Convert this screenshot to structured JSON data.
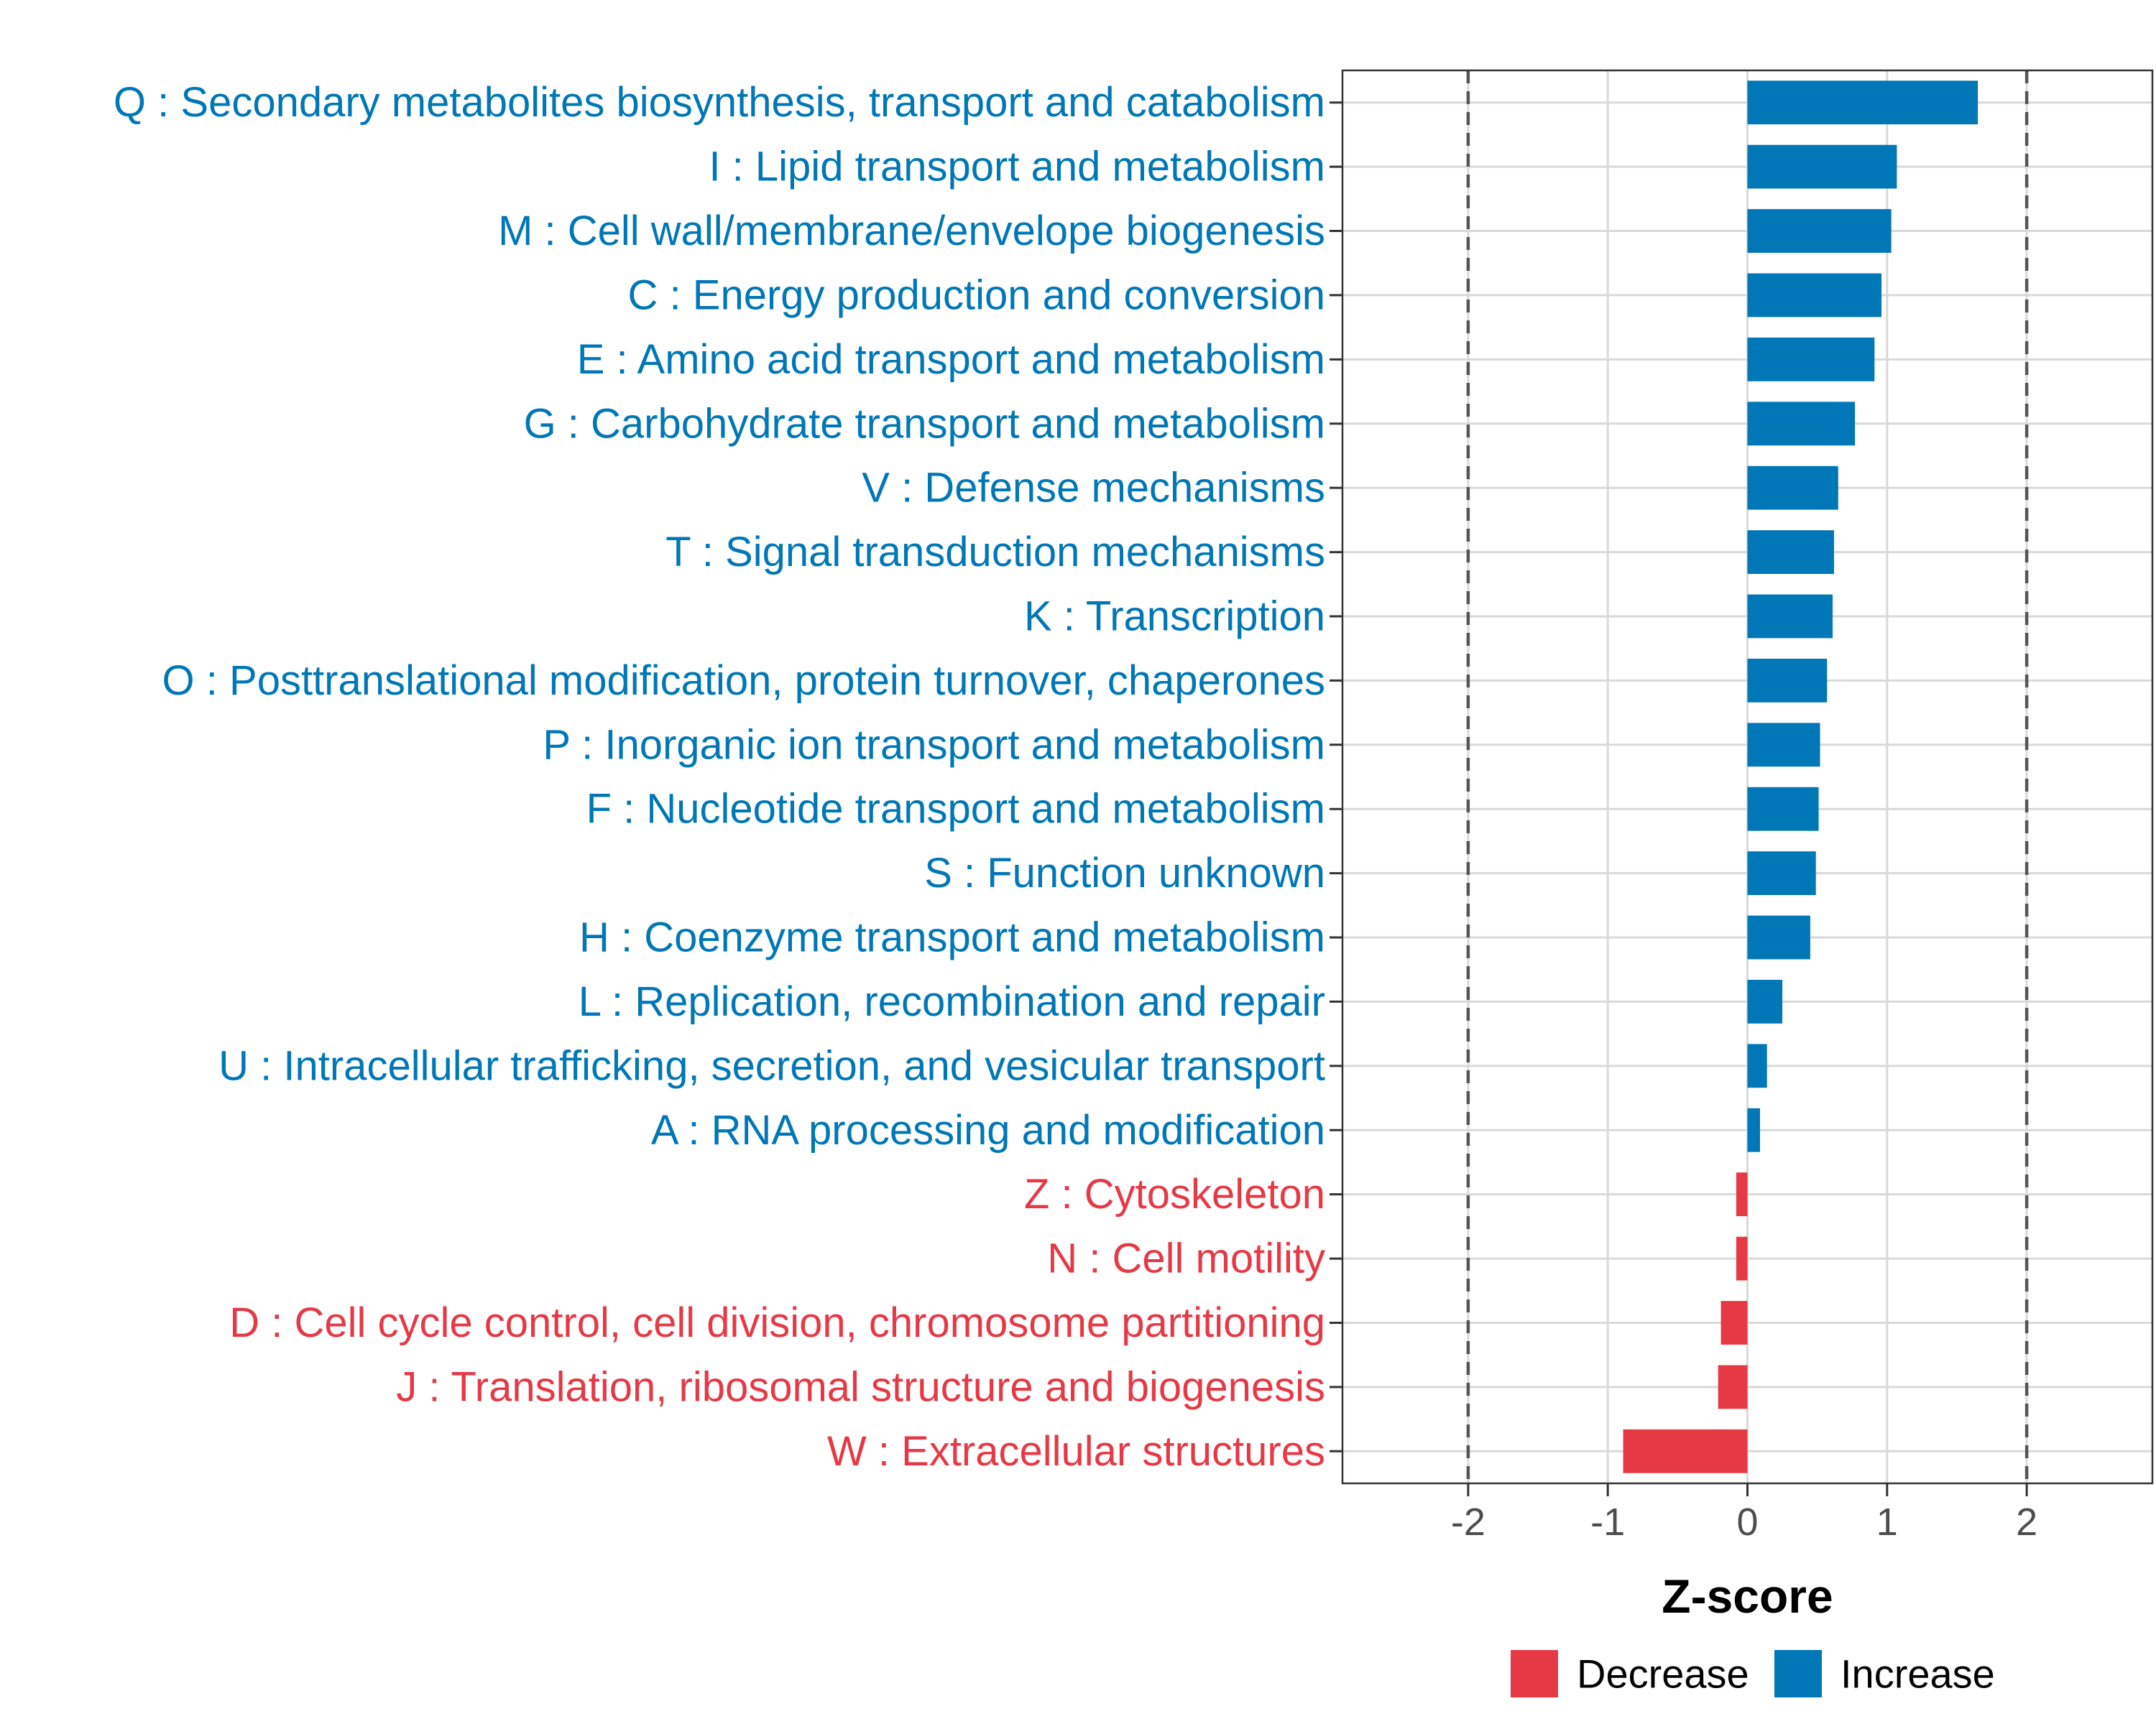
{
  "chart_data": {
    "type": "bar",
    "orientation": "horizontal",
    "xlabel": "Z-score",
    "xlim": [
      -2.9,
      2.9
    ],
    "xticks": [
      -2,
      -1,
      0,
      1,
      2
    ],
    "xtick_labels": [
      "-2",
      "-1",
      "0",
      "1",
      "2"
    ],
    "reference_lines": [
      -2,
      2
    ],
    "grid": true,
    "categories": [
      "Q : Secondary metabolites biosynthesis, transport and catabolism",
      "I : Lipid transport and metabolism",
      "M : Cell wall/membrane/envelope biogenesis",
      "C : Energy production and conversion",
      "E : Amino acid transport and metabolism",
      "G : Carbohydrate transport and metabolism",
      "V : Defense mechanisms",
      "T : Signal transduction mechanisms",
      "K : Transcription",
      "O : Posttranslational modification, protein turnover, chaperones",
      "P : Inorganic ion transport and metabolism",
      "F : Nucleotide transport and metabolism",
      "S : Function unknown",
      "H : Coenzyme transport and metabolism",
      "L : Replication, recombination and repair",
      "U : Intracellular trafficking, secretion, and vesicular transport",
      "A : RNA processing and modification",
      "Z : Cytoskeleton",
      "N : Cell motility",
      "D : Cell cycle control, cell division, chromosome partitioning",
      "J : Translation, ribosomal structure and biogenesis",
      "W : Extracellular structures"
    ],
    "values": [
      1.65,
      1.07,
      1.03,
      0.96,
      0.91,
      0.77,
      0.65,
      0.62,
      0.61,
      0.57,
      0.52,
      0.51,
      0.49,
      0.45,
      0.25,
      0.14,
      0.09,
      -0.08,
      -0.08,
      -0.19,
      -0.21,
      -0.89
    ],
    "legend": {
      "position": "bottom",
      "entries": [
        {
          "label": "Decrease",
          "color": "#E63946"
        },
        {
          "label": "Increase",
          "color": "#0077B6"
        }
      ]
    }
  },
  "colors": {
    "increase": "#0077B6",
    "decrease": "#E63946",
    "grid": "#d9d9d9",
    "reference_line": "#555555",
    "panel_border": "#333333"
  }
}
